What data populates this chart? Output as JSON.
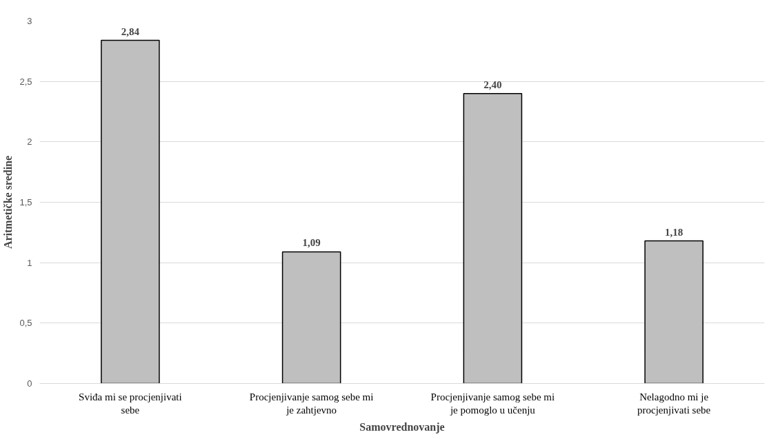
{
  "chart_data": {
    "type": "bar",
    "xlabel": "Samovrednovanje",
    "ylabel": "Aritmetičke sredine",
    "categories": [
      "Sviđa mi se procjenjivati sebe",
      "Procjenjivanje samog sebe mi je zahtjevno",
      "Procjenjivanje samog sebe mi je pomoglo u učenju",
      "Nelagodno mi je procjenjivati sebe"
    ],
    "values": [
      2.84,
      1.09,
      2.4,
      1.18
    ],
    "value_labels": [
      "2,84",
      "1,09",
      "2,40",
      "1,18"
    ],
    "color": "#bfbfbf",
    "ylim": [
      0,
      3
    ],
    "yticks": [
      0,
      {
        "value": 0.5,
        "label": "0,5"
      },
      1,
      {
        "value": 1.5,
        "label": "1,5"
      },
      2,
      {
        "value": 2.5,
        "label": "2,5"
      },
      3
    ],
    "grid": "y"
  }
}
